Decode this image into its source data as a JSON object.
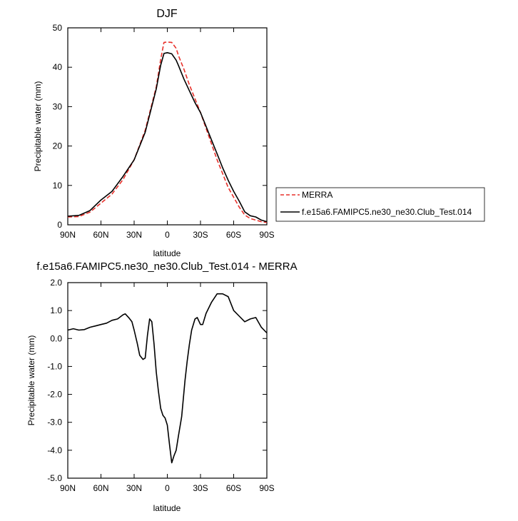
{
  "chart_data": [
    {
      "type": "line",
      "title": "DJF",
      "xlabel": "latitude",
      "ylabel": "Precipitable water (mm)",
      "xlim": [
        90,
        -90
      ],
      "ylim": [
        0,
        50
      ],
      "x_ticks": [
        90,
        60,
        30,
        0,
        -30,
        -60,
        -90
      ],
      "x_tick_labels": [
        "90N",
        "60N",
        "30N",
        "0",
        "30S",
        "60S",
        "90S"
      ],
      "y_ticks": [
        0,
        10,
        20,
        30,
        40,
        50
      ],
      "y_tick_labels": [
        "0",
        "10",
        "20",
        "30",
        "40",
        "50"
      ],
      "grid": false,
      "legend": "outside-right",
      "series": [
        {
          "name": "MERRA",
          "color": "#e8312b",
          "dash": true,
          "x": [
            90,
            80,
            70,
            60,
            50,
            40,
            30,
            20,
            10,
            6,
            3,
            0,
            -4,
            -8,
            -10,
            -15,
            -20,
            -25,
            -30,
            -35,
            -40,
            -45,
            -50,
            -55,
            -60,
            -65,
            -70,
            -75,
            -80,
            -85,
            -90
          ],
          "y": [
            2.0,
            2.1,
            3.2,
            5.5,
            7.8,
            11.5,
            16.5,
            24,
            35,
            42,
            46.3,
            46.4,
            46.3,
            44.8,
            43.0,
            39.5,
            35.5,
            32,
            28.5,
            24.5,
            20.5,
            16.5,
            13.0,
            9.5,
            7.0,
            4.5,
            2.5,
            1.6,
            1.2,
            0.8,
            0.6
          ]
        },
        {
          "name": "f.e15a6.FAMIPC5.ne30_ne30.Club_Test.014",
          "color": "#000000",
          "dash": false,
          "x": [
            90,
            80,
            70,
            60,
            50,
            40,
            30,
            20,
            10,
            6,
            3,
            0,
            -4,
            -8,
            -10,
            -15,
            -20,
            -25,
            -30,
            -35,
            -40,
            -45,
            -50,
            -55,
            -60,
            -65,
            -70,
            -75,
            -80,
            -85,
            -90
          ],
          "y": [
            2.2,
            2.4,
            3.6,
            6.3,
            8.5,
            12.3,
            16.5,
            23.5,
            34.5,
            40.5,
            43.5,
            43.7,
            43.4,
            41.8,
            40.5,
            37.0,
            34.0,
            31.0,
            28.5,
            25.0,
            21.5,
            18.0,
            14.5,
            11.3,
            8.5,
            6.0,
            3.3,
            2.3,
            2.0,
            1.2,
            0.8
          ]
        }
      ]
    },
    {
      "type": "line",
      "title": "f.e15a6.FAMIPC5.ne30_ne30.Club_Test.014 - MERRA",
      "xlabel": "latitude",
      "ylabel": "Precipitable water (mm)",
      "xlim": [
        90,
        -90
      ],
      "ylim": [
        -5,
        2
      ],
      "x_ticks": [
        90,
        60,
        30,
        0,
        -30,
        -60,
        -90
      ],
      "x_tick_labels": [
        "90N",
        "60N",
        "30N",
        "0",
        "30S",
        "60S",
        "90S"
      ],
      "y_ticks": [
        -5,
        -4,
        -3,
        -2,
        -1,
        0,
        1,
        2
      ],
      "y_tick_labels": [
        "-5.0",
        "-4.0",
        "-3.0",
        "-2.0",
        "-1.0",
        "0.0",
        "1.0",
        "2.0"
      ],
      "grid": false,
      "series": [
        {
          "color": "#000000",
          "dash": false,
          "x": [
            90,
            85,
            80,
            75,
            70,
            65,
            60,
            55,
            50,
            45,
            40,
            38,
            35,
            32,
            30,
            27,
            25,
            22,
            20,
            18,
            16,
            14,
            12,
            10,
            8,
            6,
            4,
            2,
            0,
            -2,
            -4,
            -6,
            -8,
            -10,
            -13,
            -16,
            -18,
            -20,
            -22,
            -25,
            -27,
            -30,
            -32,
            -35,
            -40,
            -45,
            -50,
            -55,
            -60,
            -65,
            -70,
            -75,
            -80,
            -85,
            -90
          ],
          "y": [
            0.3,
            0.35,
            0.3,
            0.32,
            0.4,
            0.45,
            0.5,
            0.55,
            0.65,
            0.7,
            0.85,
            0.88,
            0.75,
            0.6,
            0.3,
            -0.2,
            -0.6,
            -0.75,
            -0.7,
            0.1,
            0.7,
            0.6,
            -0.2,
            -1.2,
            -1.9,
            -2.5,
            -2.75,
            -2.85,
            -3.1,
            -3.8,
            -4.45,
            -4.2,
            -4.0,
            -3.5,
            -2.8,
            -1.5,
            -0.8,
            -0.2,
            0.3,
            0.7,
            0.75,
            0.5,
            0.5,
            0.9,
            1.3,
            1.6,
            1.6,
            1.5,
            1.0,
            0.8,
            0.6,
            0.7,
            0.75,
            0.4,
            0.2
          ]
        }
      ]
    }
  ]
}
